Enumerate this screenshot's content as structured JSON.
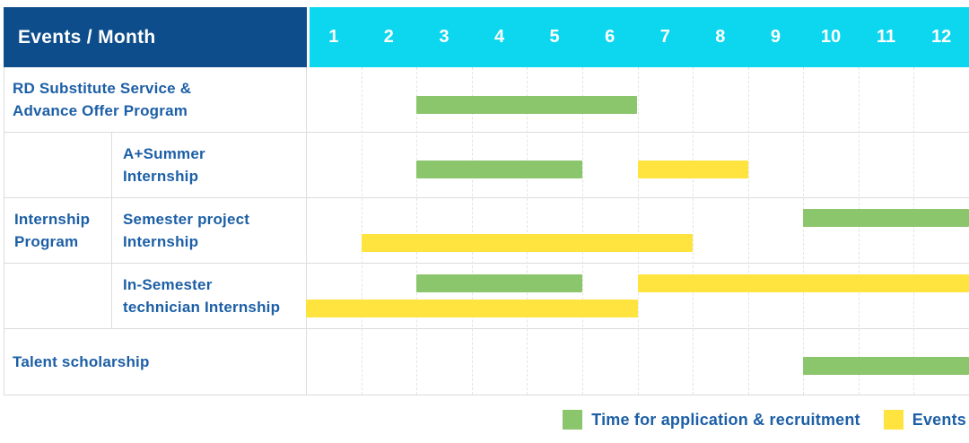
{
  "header": {
    "corner_label": "Events / Month",
    "months": [
      "1",
      "2",
      "3",
      "4",
      "5",
      "6",
      "7",
      "8",
      "9",
      "10",
      "11",
      "12"
    ]
  },
  "row_labels": {
    "r1": [
      "RD Substitute Service &",
      "Advance Offer Program"
    ],
    "group": [
      "Internship",
      "Program"
    ],
    "r2": [
      "A+Summer",
      "Internship"
    ],
    "r3": [
      "Semester project",
      "Internship"
    ],
    "r4": [
      "In-Semester",
      "technician Internship"
    ],
    "r5": [
      "Talent scholarship"
    ]
  },
  "legend": {
    "items": [
      {
        "key": "application",
        "label": "Time for application & recruitment",
        "color": "#8BC56C"
      },
      {
        "key": "events",
        "label": "Events",
        "color": "#FFE440"
      }
    ]
  },
  "colors": {
    "header_bg": "#0E4D8B",
    "month_header_bg": "#0CD7EF",
    "header_text": "#FFFFFF",
    "label_text": "#1C5FA6",
    "application_green": "#8BC56C",
    "events_yellow": "#FFE440",
    "grid_line": "#DCDCDC",
    "grid_dot": "#E4E4E4"
  },
  "chart_data": {
    "type": "gantt",
    "x_axis": {
      "label": "Month",
      "ticks": [
        1,
        2,
        3,
        4,
        5,
        6,
        7,
        8,
        9,
        10,
        11,
        12
      ],
      "range": [
        1,
        12
      ]
    },
    "legend_entries": [
      "Time for application & recruitment",
      "Events"
    ],
    "legend_position": "bottom-right",
    "grid": true,
    "rows": [
      {
        "label": "RD Substitute Service & Advance Offer Program",
        "group": null,
        "bars": [
          {
            "series": "Time for application & recruitment",
            "series_key": "application",
            "start_month": 3,
            "end_month": 6,
            "lane": "center"
          }
        ]
      },
      {
        "label": "A+Summer Internship",
        "group": "Internship Program",
        "bars": [
          {
            "series": "Time for application & recruitment",
            "series_key": "application",
            "start_month": 3,
            "end_month": 5,
            "lane": "center"
          },
          {
            "series": "Events",
            "series_key": "events",
            "start_month": 7,
            "end_month": 8,
            "lane": "center"
          }
        ]
      },
      {
        "label": "Semester project Internship",
        "group": "Internship Program",
        "bars": [
          {
            "series": "Time for application & recruitment",
            "series_key": "application",
            "start_month": 10,
            "end_month": 12,
            "lane": "top"
          },
          {
            "series": "Events",
            "series_key": "events",
            "start_month": 2,
            "end_month": 7,
            "lane": "bottom"
          }
        ]
      },
      {
        "label": "In-Semester technician Internship",
        "group": "Internship Program",
        "bars": [
          {
            "series": "Time for application & recruitment",
            "series_key": "application",
            "start_month": 3,
            "end_month": 5,
            "lane": "top"
          },
          {
            "series": "Events",
            "series_key": "events",
            "start_month": 7,
            "end_month": 12,
            "lane": "top"
          },
          {
            "series": "Events",
            "series_key": "events",
            "start_month": 1,
            "end_month": 6,
            "lane": "bottom"
          }
        ]
      },
      {
        "label": "Talent scholarship",
        "group": null,
        "bars": [
          {
            "series": "Time for application & recruitment",
            "series_key": "application",
            "start_month": 10,
            "end_month": 12,
            "lane": "center"
          }
        ]
      }
    ]
  }
}
